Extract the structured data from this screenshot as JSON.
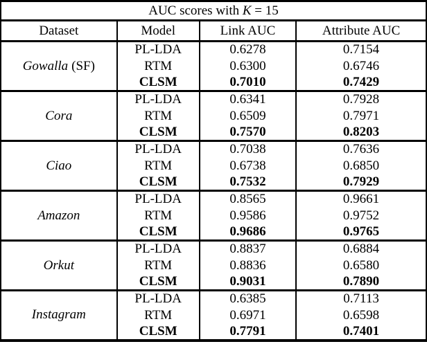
{
  "table": {
    "title": {
      "prefix": "AUC scores with",
      "math_var": "K",
      "suffix": "= 15"
    },
    "headers": [
      "Dataset",
      "Model",
      "Link AUC",
      "Attribute AUC"
    ],
    "groups": [
      {
        "dataset": "Gowalla",
        "dataset_note": "(SF)",
        "rows": [
          {
            "model": "PL-LDA",
            "link_auc": "0.6278",
            "attribute_auc": "0.7154",
            "bold": false
          },
          {
            "model": "RTM",
            "link_auc": "0.6300",
            "attribute_auc": "0.6746",
            "bold": false
          },
          {
            "model": "CLSM",
            "link_auc": "0.7010",
            "attribute_auc": "0.7429",
            "bold": true
          }
        ]
      },
      {
        "dataset": "Cora",
        "dataset_note": "",
        "rows": [
          {
            "model": "PL-LDA",
            "link_auc": "0.6341",
            "attribute_auc": "0.7928",
            "bold": false
          },
          {
            "model": "RTM",
            "link_auc": "0.6509",
            "attribute_auc": "0.7971",
            "bold": false
          },
          {
            "model": "CLSM",
            "link_auc": "0.7570",
            "attribute_auc": "0.8203",
            "bold": true
          }
        ]
      },
      {
        "dataset": "Ciao",
        "dataset_note": "",
        "rows": [
          {
            "model": "PL-LDA",
            "link_auc": "0.7038",
            "attribute_auc": "0.7636",
            "bold": false
          },
          {
            "model": "RTM",
            "link_auc": "0.6738",
            "attribute_auc": "0.6850",
            "bold": false
          },
          {
            "model": "CLSM",
            "link_auc": "0.7532",
            "attribute_auc": "0.7929",
            "bold": true
          }
        ]
      },
      {
        "dataset": "Amazon",
        "dataset_note": "",
        "rows": [
          {
            "model": "PL-LDA",
            "link_auc": "0.8565",
            "attribute_auc": "0.9661",
            "bold": false
          },
          {
            "model": "RTM",
            "link_auc": "0.9586",
            "attribute_auc": "0.9752",
            "bold": false
          },
          {
            "model": "CLSM",
            "link_auc": "0.9686",
            "attribute_auc": "0.9765",
            "bold": true
          }
        ]
      },
      {
        "dataset": "Orkut",
        "dataset_note": "",
        "rows": [
          {
            "model": "PL-LDA",
            "link_auc": "0.8837",
            "attribute_auc": "0.6884",
            "bold": false
          },
          {
            "model": "RTM",
            "link_auc": "0.8836",
            "attribute_auc": "0.6580",
            "bold": false
          },
          {
            "model": "CLSM",
            "link_auc": "0.9031",
            "attribute_auc": "0.7890",
            "bold": true
          }
        ]
      },
      {
        "dataset": "Instagram",
        "dataset_note": "",
        "rows": [
          {
            "model": "PL-LDA",
            "link_auc": "0.6385",
            "attribute_auc": "0.7113",
            "bold": false
          },
          {
            "model": "RTM",
            "link_auc": "0.6971",
            "attribute_auc": "0.6598",
            "bold": false
          },
          {
            "model": "CLSM",
            "link_auc": "0.7791",
            "attribute_auc": "0.7401",
            "bold": true
          }
        ]
      }
    ],
    "colors": {
      "text": "#000000",
      "background": "#ffffff",
      "rule": "#000000"
    }
  }
}
